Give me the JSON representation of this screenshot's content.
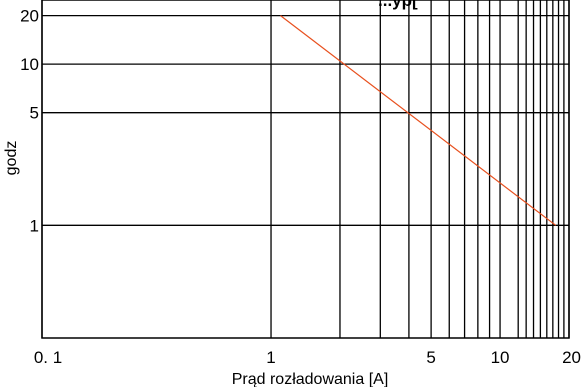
{
  "chart_data": {
    "type": "line",
    "title": "...ýp[",
    "xlabel": "Prąd rozładowania [A]",
    "ylabel": "godz",
    "x_scale": "log",
    "y_scale": "log",
    "xlim": [
      0.1,
      20
    ],
    "ylim": [
      0.2,
      25
    ],
    "x_ticks": [
      {
        "value": 0.1,
        "label": "0. 1"
      },
      {
        "value": 1,
        "label": "1"
      },
      {
        "value": 5,
        "label": "5"
      },
      {
        "value": 10,
        "label": "10"
      },
      {
        "value": 20,
        "label": "20"
      }
    ],
    "y_ticks": [
      {
        "value": 1,
        "label": "1"
      },
      {
        "value": 5,
        "label": "5"
      },
      {
        "value": 10,
        "label": "10"
      },
      {
        "value": 20,
        "label": "20"
      }
    ],
    "x_gridlines": [
      0.1,
      1,
      2,
      3,
      4,
      5,
      6,
      7,
      8,
      9,
      10,
      12,
      13,
      14,
      15,
      16,
      17,
      18,
      19,
      20
    ],
    "y_gridlines": [
      1,
      5,
      10,
      20
    ],
    "grid": true,
    "series": [
      {
        "color": "#e8501e",
        "x": [
          1.1,
          17.5
        ],
        "y": [
          20,
          1
        ]
      }
    ]
  }
}
